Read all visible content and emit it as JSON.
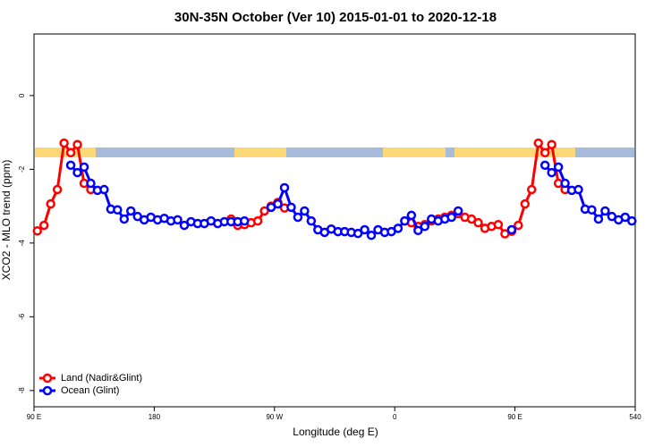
{
  "chart_data": {
    "type": "line",
    "title": "30N-35N October (Ver 10)   2015-01-01 to 2020-12-18",
    "xlabel": "Longitude (deg E)",
    "ylabel": "XCO2 - MLO trend (ppm)",
    "x": [
      92.5,
      97.5,
      102.5,
      107.5,
      112.5,
      117.5,
      122.5,
      127.5,
      132.5,
      137.5,
      142.5,
      147.5,
      152.5,
      157.5,
      162.5,
      167.5,
      172.5,
      177.5,
      182.5,
      187.5,
      192.5,
      197.5,
      202.5,
      207.5,
      212.5,
      217.5,
      222.5,
      227.5,
      232.5,
      237.5,
      242.5,
      247.5,
      252.5,
      257.5,
      262.5,
      267.5,
      272.5,
      277.5,
      282.5,
      287.5,
      292.5,
      297.5,
      302.5,
      307.5,
      312.5,
      317.5,
      322.5,
      327.5,
      332.5,
      337.5,
      342.5,
      347.5,
      352.5,
      357.5,
      362.5,
      367.5,
      372.5,
      377.5,
      382.5,
      387.5,
      392.5,
      397.5,
      402.5,
      407.5,
      412.5,
      417.5,
      422.5,
      427.5,
      432.5,
      437.5,
      442.5,
      447.5,
      452.5,
      457.5,
      462.5,
      467.5,
      472.5,
      477.5,
      482.5,
      487.5,
      492.5,
      497.5,
      502.5,
      507.5,
      512.5,
      517.5,
      522.5,
      527.5,
      532.5,
      537.5
    ],
    "series": [
      {
        "name": "Land (Nadir&Glint)",
        "color": "#ff0000",
        "values": [
          -3.67,
          -3.52,
          -2.94,
          -2.55,
          -1.29,
          -1.55,
          -1.33,
          -2.38,
          -2.55,
          null,
          null,
          null,
          null,
          null,
          null,
          null,
          null,
          null,
          null,
          null,
          null,
          null,
          null,
          null,
          null,
          null,
          null,
          null,
          null,
          -3.35,
          -3.52,
          -3.5,
          -3.45,
          -3.4,
          -3.13,
          -3.0,
          -2.9,
          -3.05,
          null,
          null,
          null,
          null,
          null,
          null,
          null,
          null,
          null,
          null,
          null,
          null,
          null,
          null,
          null,
          null,
          null,
          -3.4,
          -3.45,
          -3.55,
          -3.5,
          -3.4,
          -3.35,
          -3.3,
          -3.25,
          -3.2,
          -3.3,
          -3.35,
          -3.45,
          -3.6,
          -3.55,
          -3.5,
          -3.75,
          -3.68,
          -3.52,
          -2.94,
          -2.55,
          -1.29,
          -1.55,
          -1.33,
          -2.38,
          -2.55,
          null,
          null,
          null,
          null,
          null,
          null,
          null,
          null,
          null,
          null
        ]
      },
      {
        "name": "Ocean (Glint)",
        "color": "#0000ff",
        "values": [
          null,
          null,
          null,
          null,
          null,
          -1.89,
          -2.09,
          -1.94,
          -2.38,
          -2.57,
          -2.55,
          -3.08,
          -3.1,
          -3.35,
          -3.13,
          -3.28,
          -3.37,
          -3.3,
          -3.37,
          -3.33,
          -3.4,
          -3.37,
          -3.52,
          -3.42,
          -3.47,
          -3.47,
          -3.4,
          -3.47,
          -3.42,
          -3.42,
          -3.42,
          -3.4,
          null,
          null,
          null,
          -3.03,
          -2.94,
          -2.5,
          -3.03,
          -3.3,
          -3.13,
          -3.4,
          -3.64,
          -3.71,
          -3.62,
          -3.69,
          -3.69,
          -3.71,
          -3.74,
          -3.64,
          -3.79,
          -3.64,
          -3.71,
          -3.69,
          -3.6,
          -3.4,
          -3.25,
          -3.66,
          -3.55,
          -3.35,
          -3.4,
          -3.35,
          -3.3,
          -3.13,
          null,
          null,
          null,
          null,
          null,
          null,
          null,
          -3.64,
          null,
          null,
          null,
          null,
          -1.89,
          -2.09,
          -1.94,
          -2.38,
          -2.57,
          -2.55,
          -3.08,
          -3.1,
          -3.35,
          -3.13,
          -3.28,
          -3.37,
          -3.3,
          -3.4
        ]
      }
    ],
    "xlim": [
      90,
      540
    ],
    "xticks": [
      {
        "value": 90,
        "label": "90 E"
      },
      180,
      {
        "value": 270,
        "label": "90 W"
      },
      {
        "value": 360,
        "label": "0"
      },
      {
        "value": 450,
        "label": "90 E"
      },
      540
    ],
    "ylim": [
      -8.44,
      1.67
    ],
    "yticks": [
      0,
      -2,
      -4,
      -6,
      -8
    ],
    "legend": "bottomleft"
  }
}
